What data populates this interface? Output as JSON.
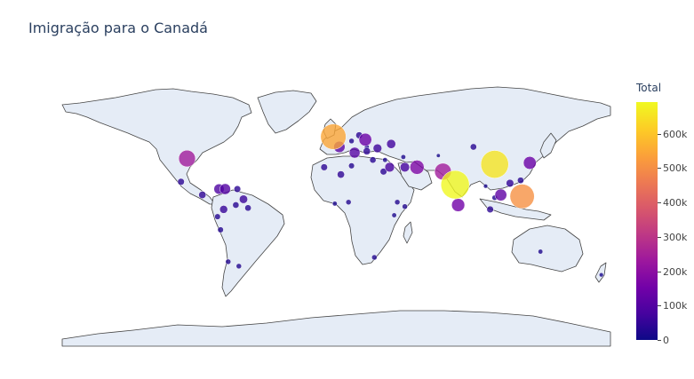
{
  "title": "Imigração para o Canadá",
  "colorbar": {
    "title": "Total",
    "ticks": [
      {
        "label": "600k",
        "value": 600000
      },
      {
        "label": "500k",
        "value": 500000
      },
      {
        "label": "400k",
        "value": 400000
      },
      {
        "label": "300k",
        "value": 300000
      },
      {
        "label": "200k",
        "value": 200000
      },
      {
        "label": "100k",
        "value": 100000
      },
      {
        "label": "0",
        "value": 0
      }
    ],
    "range": [
      0,
      691904
    ]
  },
  "colors": {
    "ocean": "#ffffff",
    "land": "#e5ecf6",
    "coast": "#444444",
    "scale": [
      "#0d0887",
      "#46039f",
      "#7201a8",
      "#9c179e",
      "#bd3786",
      "#d8576b",
      "#ed7953",
      "#fb9f3a",
      "#fdca26",
      "#f0f921"
    ]
  },
  "chart_data": {
    "type": "scatter_geo",
    "projection": "natural earth",
    "points": [
      {
        "lon": 78,
        "lat": 21,
        "value": 690000
      },
      {
        "lon": 104,
        "lat": 35,
        "value": 660000
      },
      {
        "lon": -2,
        "lat": 54,
        "value": 550000
      },
      {
        "lon": 122,
        "lat": 13,
        "value": 510000
      },
      {
        "lon": -98,
        "lat": 39,
        "value": 240000
      },
      {
        "lon": 70,
        "lat": 30,
        "value": 240000
      },
      {
        "lon": 80,
        "lat": 7,
        "value": 150000
      },
      {
        "lon": 53,
        "lat": 33,
        "value": 175000
      },
      {
        "lon": 19,
        "lat": 52,
        "value": 140000
      },
      {
        "lon": 127,
        "lat": 36,
        "value": 140000
      },
      {
        "lon": 108,
        "lat": 14,
        "value": 120000
      },
      {
        "lon": -73,
        "lat": 18,
        "value": 100000
      },
      {
        "lon": -77,
        "lat": 18,
        "value": 90000
      },
      {
        "lon": 2,
        "lat": 47,
        "value": 110000
      },
      {
        "lon": 12,
        "lat": 43,
        "value": 100000
      },
      {
        "lon": 35,
        "lat": 33,
        "value": 80000
      },
      {
        "lon": 45,
        "lat": 33,
        "value": 75000
      },
      {
        "lon": -61,
        "lat": 11,
        "value": 60000
      },
      {
        "lon": 27,
        "lat": 46,
        "value": 65000
      },
      {
        "lon": 36,
        "lat": 49,
        "value": 70000
      },
      {
        "lon": -74,
        "lat": 4,
        "value": 55000
      },
      {
        "lon": -65,
        "lat": 18,
        "value": 40000
      },
      {
        "lon": -88,
        "lat": 14,
        "value": 45000
      },
      {
        "lon": 90,
        "lat": 47,
        "value": 35000
      },
      {
        "lon": 101,
        "lat": 4,
        "value": 40000
      },
      {
        "lon": -58,
        "lat": 5,
        "value": 35000
      },
      {
        "lon": 15,
        "lat": 55,
        "value": 40000
      },
      {
        "lon": 20,
        "lat": 44,
        "value": 45000
      },
      {
        "lon": 31,
        "lat": 30,
        "value": 40000
      },
      {
        "lon": 10,
        "lat": 34,
        "value": 30000
      },
      {
        "lon": -8,
        "lat": 33,
        "value": 40000
      },
      {
        "lon": 3,
        "lat": 28,
        "value": 45000
      },
      {
        "lon": 24,
        "lat": 38,
        "value": 35000
      },
      {
        "lon": -66,
        "lat": 7,
        "value": 35000
      },
      {
        "lon": -78,
        "lat": -1,
        "value": 30000
      },
      {
        "lon": -76,
        "lat": -10,
        "value": 30000
      },
      {
        "lon": -64,
        "lat": -35,
        "value": 25000
      },
      {
        "lon": -71,
        "lat": -32,
        "value": 25000
      },
      {
        "lon": -102,
        "lat": 23,
        "value": 40000
      },
      {
        "lon": 8,
        "lat": 9,
        "value": 25000
      },
      {
        "lon": 40,
        "lat": 9,
        "value": 25000
      },
      {
        "lon": 45,
        "lat": 6,
        "value": 25000
      },
      {
        "lon": 38,
        "lat": 0,
        "value": 20000
      },
      {
        "lon": 25,
        "lat": -29,
        "value": 25000
      },
      {
        "lon": -1,
        "lat": 8,
        "value": 20000
      },
      {
        "lon": 121,
        "lat": 24,
        "value": 35000
      },
      {
        "lon": 114,
        "lat": 22,
        "value": 50000
      },
      {
        "lon": 134,
        "lat": -25,
        "value": 20000
      },
      {
        "lon": 174,
        "lat": -41,
        "value": 15000
      },
      {
        "lon": 98,
        "lat": 20,
        "value": 15000
      },
      {
        "lon": 104,
        "lat": 12,
        "value": 25000
      },
      {
        "lon": 67,
        "lat": 41,
        "value": 10000
      },
      {
        "lon": 44,
        "lat": 40,
        "value": 20000
      },
      {
        "lon": 32,
        "lat": 38,
        "value": 20000
      },
      {
        "lon": 20,
        "lat": 47,
        "value": 20000
      },
      {
        "lon": 10,
        "lat": 51,
        "value": 25000
      }
    ]
  }
}
